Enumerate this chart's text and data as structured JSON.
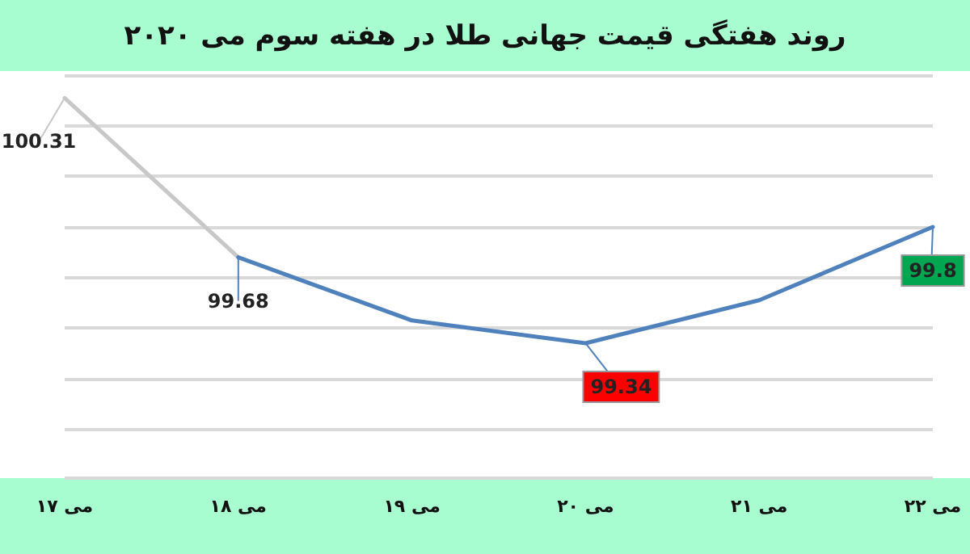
{
  "chart_data": {
    "type": "line",
    "title": "روند هفتگی قیمت جهانی طلا در هفته سوم می ۲۰۲۰",
    "categories": [
      "۱۷ می",
      "۱۸ می",
      "۱۹ می",
      "۲۰ می",
      "۲۱ می",
      "۲۲ می"
    ],
    "series": [
      {
        "color": "#c8c8c8",
        "values": [
          100.31,
          99.68,
          null,
          null,
          null,
          null
        ],
        "value_labels": [
          "100.31",
          null,
          null,
          null,
          null,
          null
        ]
      },
      {
        "color": "#4f81bd",
        "values": [
          null,
          99.68,
          99.43,
          99.34,
          99.51,
          99.8
        ],
        "value_labels": [
          null,
          "99.68",
          null,
          "99.34",
          null,
          "99.8"
        ]
      }
    ],
    "tick_labels": "x",
    "grid": "y",
    "marker": "none",
    "line_style": "solid"
  }
}
